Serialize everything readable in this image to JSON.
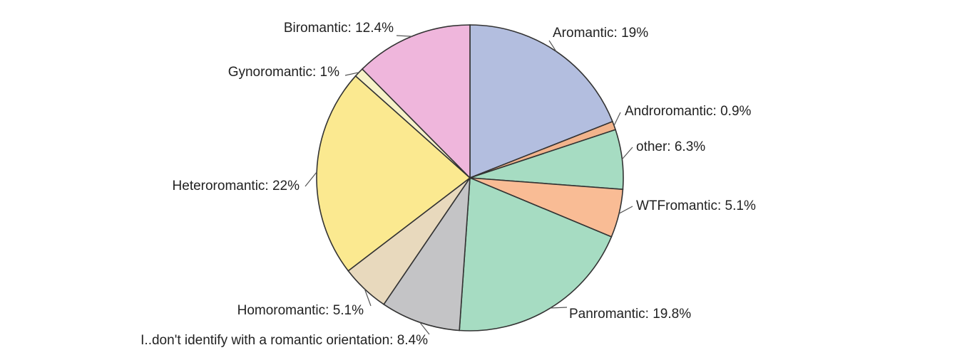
{
  "chart_data": {
    "type": "pie",
    "title": "",
    "slices": [
      {
        "label": "Aromantic",
        "value": 19,
        "display": "Aromantic: 19%",
        "color": "#b3bedf"
      },
      {
        "label": "Androromantic",
        "value": 0.9,
        "display": "Androromantic: 0.9%",
        "color": "#f2b48c"
      },
      {
        "label": "other",
        "value": 6.3,
        "display": "other: 6.3%",
        "color": "#a6dcc2"
      },
      {
        "label": "WTFromantic",
        "value": 5.1,
        "display": "WTFromantic: 5.1%",
        "color": "#f9bc95"
      },
      {
        "label": "Panromantic",
        "value": 19.8,
        "display": "Panromantic: 19.8%",
        "color": "#a6dcc2"
      },
      {
        "label": "I..don't identify with a romantic orientation",
        "value": 8.4,
        "display": "I..don't identify with a romantic orientation: 8.4%",
        "color": "#c4c4c6"
      },
      {
        "label": "Homoromantic",
        "value": 5.1,
        "display": "Homoromantic: 5.1%",
        "color": "#e8d9bd"
      },
      {
        "label": "Heteroromantic",
        "value": 22,
        "display": "Heteroromantic: 22%",
        "color": "#fbe990"
      },
      {
        "label": "Gynoromantic",
        "value": 1,
        "display": "Gynoromantic: 1%",
        "color": "#f7f2c8"
      },
      {
        "label": "Biromantic",
        "value": 12.4,
        "display": "Biromantic: 12.4%",
        "color": "#efb6dc"
      }
    ],
    "start": "top",
    "direction": "clockwise",
    "legend": "none"
  }
}
